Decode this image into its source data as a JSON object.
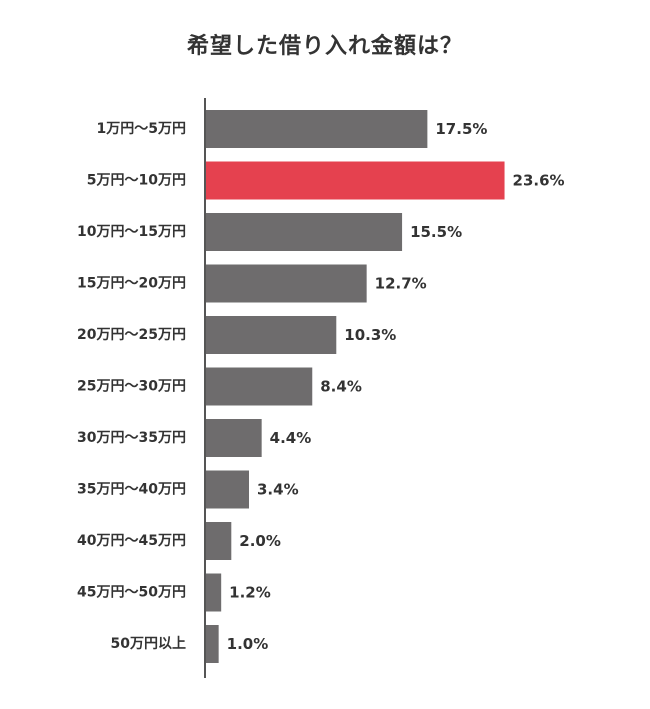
{
  "colors": {
    "bar": "#6e6c6d",
    "highlight": "#e5414f",
    "axis": "#555555",
    "text": "#333333"
  },
  "chart_data": {
    "type": "bar",
    "orientation": "horizontal",
    "title": "希望した借り入れ金額は？",
    "categories": [
      "1万円〜5万円",
      "5万円〜10万円",
      "10万円〜15万円",
      "15万円〜20万円",
      "20万円〜25万円",
      "25万円〜30万円",
      "30万円〜35万円",
      "35万円〜40万円",
      "40万円〜45万円",
      "45万円〜50万円",
      "50万円以上"
    ],
    "values": [
      17.5,
      23.6,
      15.5,
      12.7,
      10.3,
      8.4,
      4.4,
      3.4,
      2.0,
      1.2,
      1.0
    ],
    "value_labels": [
      "17.5%",
      "23.6%",
      "15.5%",
      "12.7%",
      "10.3%",
      "8.4%",
      "4.4%",
      "3.4%",
      "2.0%",
      "1.2%",
      "1.0%"
    ],
    "highlight_category": "5万円〜10万円",
    "xlabel": "",
    "ylabel": "",
    "grid": false,
    "legend": "none"
  }
}
